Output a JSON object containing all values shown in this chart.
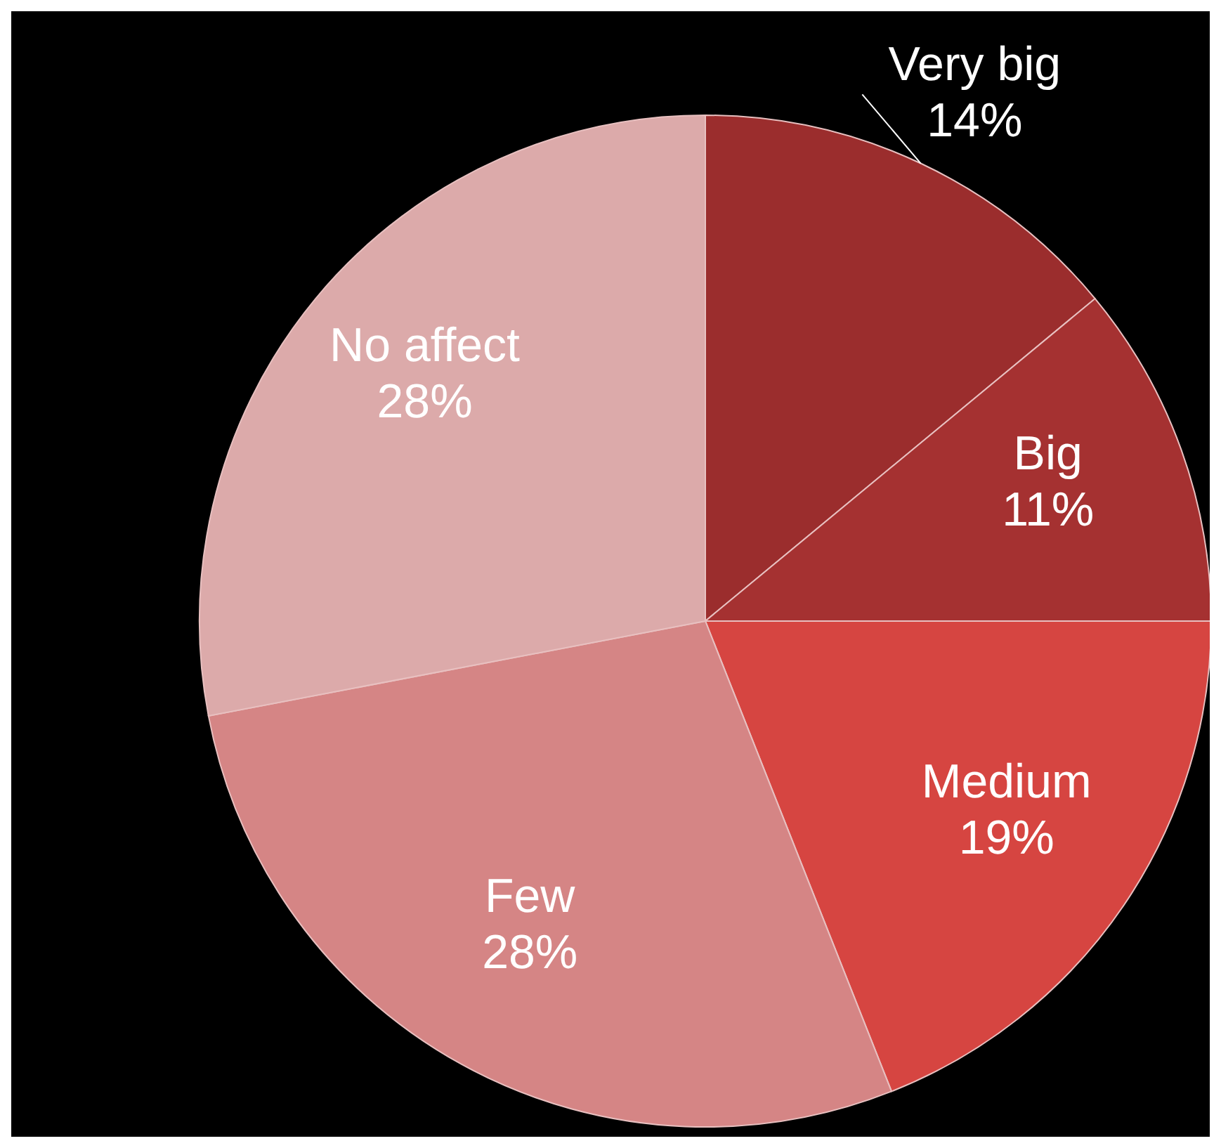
{
  "chart_data": {
    "type": "pie",
    "categories": [
      "Very big",
      "Big",
      "Medium",
      "Few",
      "No affect"
    ],
    "values": [
      14,
      11,
      19,
      28,
      28
    ],
    "value_labels": [
      "14%",
      "11%",
      "19%",
      "28%",
      "28%"
    ],
    "colors": [
      "#9b2d2d",
      "#a53131",
      "#d64541",
      "#d58585",
      "#dcaaaa"
    ],
    "legend": false
  }
}
